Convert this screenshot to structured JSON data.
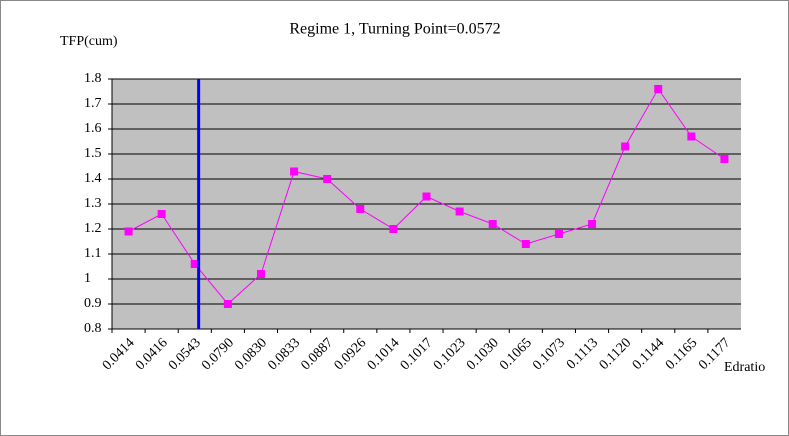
{
  "chart_data": {
    "type": "line",
    "title": "Regime 1, Turning Point=0.0572",
    "turning_point": 0.0572,
    "ylabel": "TFP(cum)",
    "xlabel": "Edratio",
    "categories": [
      "0.0414",
      "0.0416",
      "0.0543",
      "0.0790",
      "0.0830",
      "0.0833",
      "0.0887",
      "0.0926",
      "0.1014",
      "0.1017",
      "0.1023",
      "0.1030",
      "0.1065",
      "0.1073",
      "0.1113",
      "0.1120",
      "0.1144",
      "0.1165",
      "0.1177"
    ],
    "values": [
      1.19,
      1.26,
      1.06,
      0.9,
      1.02,
      1.43,
      1.4,
      1.28,
      1.2,
      1.33,
      1.27,
      1.22,
      1.14,
      1.18,
      1.22,
      1.53,
      1.76,
      1.57,
      1.48
    ],
    "color": "#ff00ff",
    "marker_line_color": "#0000ff",
    "ylim": [
      0.8,
      1.8
    ],
    "yticks": [
      0.8,
      0.9,
      1,
      1.1,
      1.2,
      1.3,
      1.4,
      1.5,
      1.6,
      1.7,
      1.8
    ],
    "grid": true
  }
}
